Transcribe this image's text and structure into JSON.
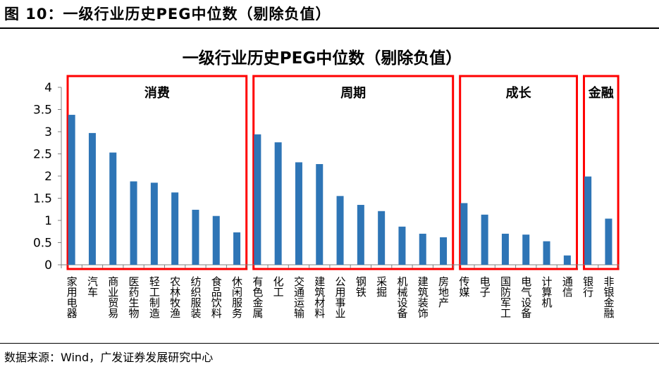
{
  "figure": {
    "title": "图 10：一级行业历史PEG中位数（剔除负值）",
    "source": "数据来源：Wind，广发证券发展研究中心"
  },
  "chart_data": {
    "type": "bar",
    "title": "一级行业历史PEG中位数（剔除负值）",
    "xlabel": "",
    "ylabel": "",
    "ylim": [
      0,
      4
    ],
    "yticks": [
      "0",
      "0.5",
      "1",
      "1.5",
      "2",
      "2.5",
      "3",
      "3.5",
      "4"
    ],
    "bar_color": "#2E75B6",
    "box_color": "#FF0000",
    "categories": [
      "家用电器",
      "汽车",
      "商业贸易",
      "医药生物",
      "轻工制造",
      "农林牧渔",
      "纺织服装",
      "食品饮料",
      "休闲服务",
      "有色金属",
      "化工",
      "交通运输",
      "建筑材料",
      "公用事业",
      "钢铁",
      "采掘",
      "机械设备",
      "建筑装饰",
      "房地产",
      "传媒",
      "电子",
      "国防军工",
      "电气设备",
      "计算机",
      "通信",
      "银行",
      "非银金融"
    ],
    "values": [
      3.38,
      2.97,
      2.53,
      1.88,
      1.85,
      1.63,
      1.24,
      1.1,
      0.73,
      2.94,
      2.76,
      2.31,
      2.27,
      1.55,
      1.35,
      1.21,
      0.86,
      0.7,
      0.62,
      1.39,
      1.13,
      0.7,
      0.68,
      0.53,
      0.21,
      1.99,
      1.04
    ],
    "groups": [
      {
        "label": "消费",
        "start": 0,
        "end": 8
      },
      {
        "label": "周期",
        "start": 9,
        "end": 18
      },
      {
        "label": "成长",
        "start": 19,
        "end": 24
      },
      {
        "label": "金融",
        "start": 25,
        "end": 26
      }
    ]
  }
}
